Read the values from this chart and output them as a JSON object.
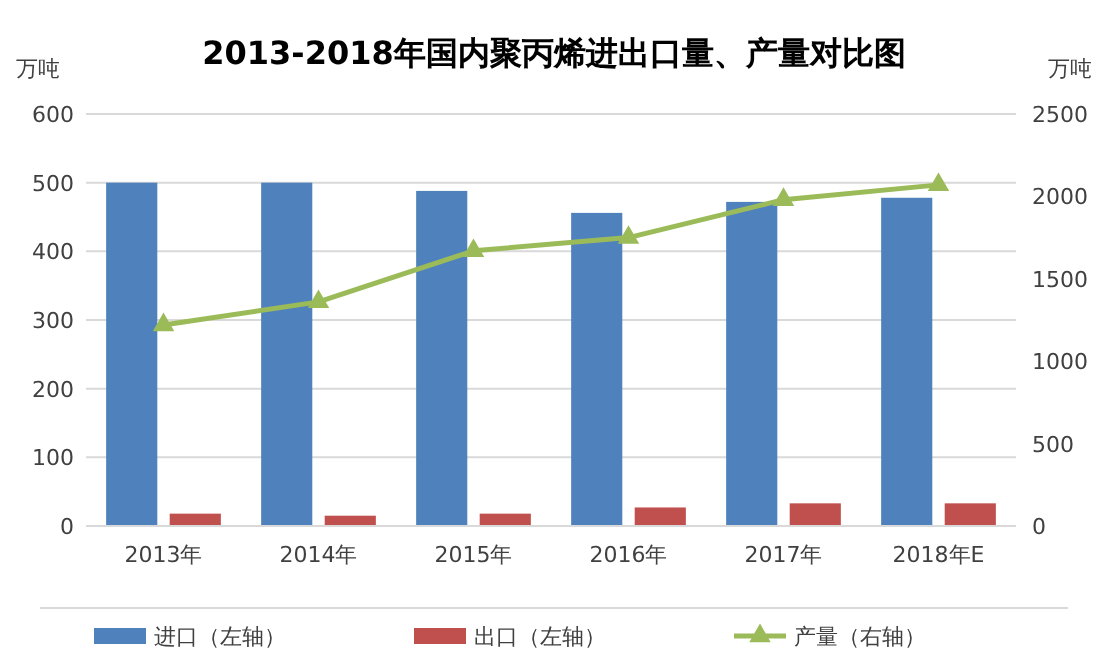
{
  "chart_data": {
    "type": "bar",
    "title": "2013-2018年国内聚丙烯进出口量、产量对比图",
    "ylabel": "万吨",
    "y2label": "万吨",
    "categories": [
      "2013年",
      "2014年",
      "2015年",
      "2016年",
      "2017年",
      "2018年E"
    ],
    "series": [
      {
        "name": "进口（左轴）",
        "color": "#4f81bd",
        "values": [
          500,
          500,
          488,
          456,
          472,
          478
        ]
      },
      {
        "name": "出口（左轴）",
        "color": "#c0504d",
        "values": [
          18,
          15,
          18,
          27,
          33,
          33
        ]
      },
      {
        "name": "产量（右轴）",
        "type": "line",
        "axis": "y2",
        "color": "#9bbb59",
        "marker": "triangle",
        "values": [
          1220,
          1360,
          1670,
          1750,
          1980,
          2070
        ]
      }
    ],
    "ylim": [
      0,
      600
    ],
    "yticks": [
      0,
      100,
      200,
      300,
      400,
      500,
      600
    ],
    "y2lim": [
      0,
      2500
    ],
    "y2ticks": [
      0,
      500,
      1000,
      1500,
      2000,
      2500
    ],
    "grid": "y",
    "legend": "bottom"
  }
}
